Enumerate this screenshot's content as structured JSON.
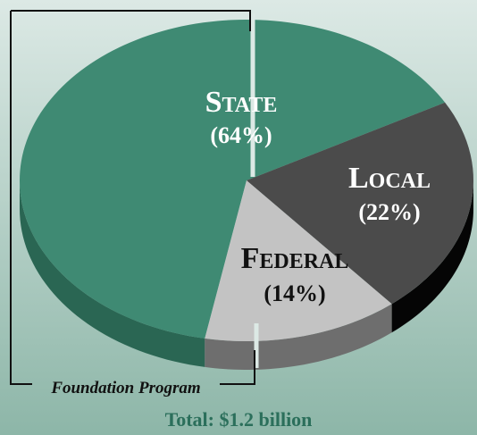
{
  "chart_data": {
    "type": "pie",
    "categories": [
      "State",
      "Local",
      "Federal"
    ],
    "values": [
      64,
      22,
      14
    ],
    "value_labels": [
      "(64%)",
      "(22%)",
      "(14%)"
    ],
    "colors": [
      "#3f8a73",
      "#4b4b4b",
      "#c3c3c3"
    ],
    "side_colors": [
      "#2a6653",
      "#050505",
      "#6e6e6e"
    ],
    "annotation": "Foundation Program",
    "note": "Total: $1.2 billion"
  }
}
